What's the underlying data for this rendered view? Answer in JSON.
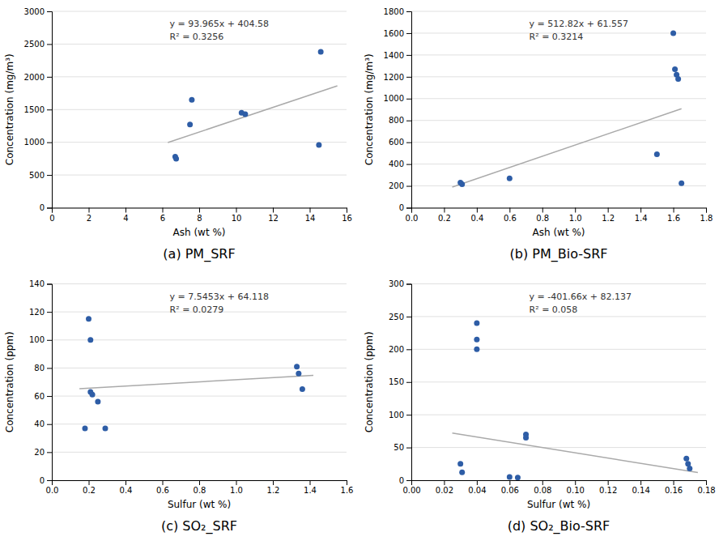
{
  "chart_data": [
    {
      "type": "scatter",
      "title": "(a)  PM_SRF",
      "xlabel": "Ash (wt %)",
      "ylabel": "Concentration (mg/m³)",
      "xlim": [
        0,
        16
      ],
      "ylim": [
        0,
        3000
      ],
      "xticks": [
        0,
        2,
        4,
        6,
        8,
        10,
        12,
        14,
        16
      ],
      "yticks": [
        0,
        500,
        1000,
        1500,
        2000,
        2500,
        3000
      ],
      "grid": true,
      "series": [
        {
          "type": "scatter",
          "color": "#2E5DA6",
          "x": [
            6.7,
            6.75,
            7.5,
            7.6,
            10.3,
            10.5,
            14.5,
            14.6
          ],
          "values": [
            780,
            750,
            1270,
            1650,
            1450,
            1430,
            960,
            2380
          ]
        },
        {
          "type": "line",
          "color": "#aaaaaa",
          "x": [
            6.3,
            15.5
          ],
          "values": [
            996.5595,
            1861.0375
          ]
        }
      ],
      "annotations": [
        "y = 93.965x + 404.58",
        "R² = 0.3256"
      ]
    },
    {
      "type": "scatter",
      "title": "(b)  PM_Bio-SRF",
      "xlabel": "Ash (wt %)",
      "ylabel": "Concentration (mg/m³)",
      "xlim": [
        0,
        1.8
      ],
      "ylim": [
        0,
        1800
      ],
      "xticks": [
        {
          "value": 0,
          "label": "0.0"
        },
        0.2,
        0.4,
        0.6,
        0.8,
        {
          "value": 1.0,
          "label": "1.0"
        },
        1.2,
        1.4,
        1.6,
        1.8
      ],
      "yticks": [
        0,
        200,
        400,
        600,
        800,
        1000,
        1200,
        1400,
        1600,
        1800
      ],
      "grid": true,
      "series": [
        {
          "type": "scatter",
          "color": "#2E5DA6",
          "x": [
            0.3,
            0.31,
            0.6,
            1.5,
            1.6,
            1.61,
            1.62,
            1.63,
            1.65
          ],
          "values": [
            230,
            215,
            270,
            490,
            1600,
            1270,
            1220,
            1180,
            225
          ]
        },
        {
          "type": "line",
          "color": "#aaaaaa",
          "x": [
            0.25,
            1.65
          ],
          "values": [
            189.762,
            907.71
          ]
        }
      ],
      "annotations": [
        "y = 512.82x + 61.557",
        "R² = 0.3214"
      ]
    },
    {
      "type": "scatter",
      "title": "(c)  SO₂_SRF",
      "xlabel": "Sulfur (wt %)",
      "ylabel": "Concentration (ppm)",
      "xlim": [
        0,
        1.6
      ],
      "ylim": [
        0,
        140
      ],
      "xticks": [
        {
          "value": 0,
          "label": "0.0"
        },
        0.2,
        0.4,
        0.6,
        0.8,
        {
          "value": 1.0,
          "label": "1.0"
        },
        1.2,
        1.4,
        1.6
      ],
      "yticks": [
        0,
        20,
        40,
        60,
        80,
        100,
        120,
        140
      ],
      "grid": true,
      "series": [
        {
          "type": "scatter",
          "color": "#2E5DA6",
          "x": [
            0.18,
            0.2,
            0.21,
            0.21,
            0.22,
            0.25,
            0.29,
            1.33,
            1.34,
            1.36
          ],
          "values": [
            37,
            115,
            100,
            63,
            61,
            56,
            37,
            81,
            76,
            65
          ]
        },
        {
          "type": "line",
          "color": "#aaaaaa",
          "x": [
            0.15,
            1.42
          ],
          "values": [
            65.249795,
            74.832326
          ]
        }
      ],
      "annotations": [
        "y = 7.5453x + 64.118",
        "R² = 0.0279"
      ]
    },
    {
      "type": "scatter",
      "title": "(d)  SO₂_Bio-SRF",
      "xlabel": "Sulfur (wt %)",
      "ylabel": "Concentration (ppm)",
      "xlim": [
        0,
        0.18
      ],
      "ylim": [
        0,
        300
      ],
      "xticks": [
        {
          "value": 0,
          "label": "0.00"
        },
        0.02,
        0.04,
        0.06,
        0.08,
        {
          "value": 0.1,
          "label": "0.10"
        },
        0.12,
        0.14,
        0.16,
        0.18
      ],
      "yticks": [
        0,
        50,
        100,
        150,
        200,
        250,
        300
      ],
      "grid": true,
      "series": [
        {
          "type": "scatter",
          "color": "#2E5DA6",
          "x": [
            0.03,
            0.031,
            0.04,
            0.04,
            0.04,
            0.06,
            0.065,
            0.07,
            0.07,
            0.168,
            0.169,
            0.17
          ],
          "values": [
            25,
            12,
            240,
            215,
            200,
            5,
            4,
            70,
            65,
            33,
            25,
            18
          ]
        },
        {
          "type": "line",
          "color": "#aaaaaa",
          "x": [
            0.025,
            0.175
          ],
          "values": [
            72.0955,
            11.8465
          ]
        }
      ],
      "annotations": [
        "y = -401.66x + 82.137",
        "R² = 0.058"
      ]
    }
  ]
}
